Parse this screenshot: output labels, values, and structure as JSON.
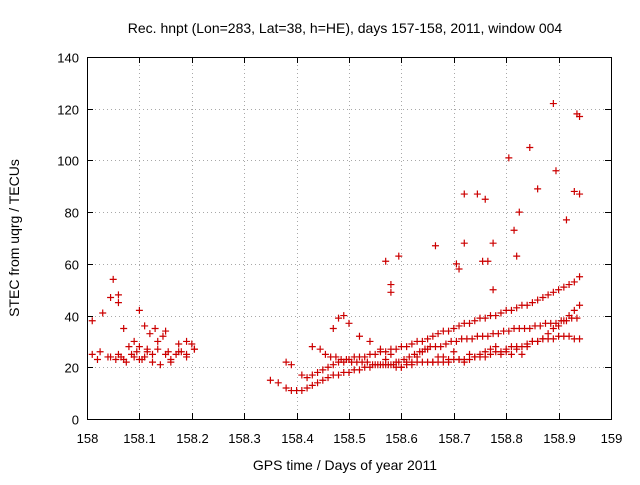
{
  "chart_data": {
    "type": "scatter",
    "title": "Rec. hnpt (Lon=283, Lat=38, h=HE), days 157-158, 2011, window 004",
    "xlabel": "GPS time / Days of year 2011",
    "ylabel": "STEC from uqrg / TECUs",
    "xlim": [
      158,
      159
    ],
    "ylim": [
      0,
      140
    ],
    "xticks": [
      "158",
      "158.1",
      "158.2",
      "158.3",
      "158.4",
      "158.5",
      "158.6",
      "158.7",
      "158.8",
      "158.9",
      "159"
    ],
    "xtick_values": [
      158,
      158.1,
      158.2,
      158.3,
      158.4,
      158.5,
      158.6,
      158.7,
      158.8,
      158.9,
      159
    ],
    "yticks": [
      "0",
      "20",
      "40",
      "60",
      "80",
      "100",
      "120",
      "140"
    ],
    "ytick_values": [
      0,
      20,
      40,
      60,
      80,
      100,
      120,
      140
    ],
    "grid": true,
    "marker": "plus",
    "color": "#cc0000",
    "series": [
      {
        "x": [
          158.01,
          158.01,
          158.02,
          158.03,
          158.04,
          158.045,
          158.05,
          158.055,
          158.06,
          158.06,
          158.065,
          158.07,
          158.075,
          158.08,
          158.085,
          158.09,
          158.095,
          158.1,
          158.1,
          158.105,
          158.11,
          158.115,
          158.12,
          158.125,
          158.13,
          158.135,
          158.14,
          158.145,
          158.15,
          158.155,
          158.16,
          158.17,
          158.175,
          158.18,
          158.19,
          158.19,
          158.2,
          158.205,
          158.025,
          158.045,
          158.06,
          158.07,
          158.09,
          158.1,
          158.11,
          158.115,
          158.125,
          158.135,
          158.15,
          158.16,
          158.175,
          158.19,
          158.205,
          158.35,
          158.365,
          158.38,
          158.39,
          158.4,
          158.41,
          158.42,
          158.43,
          158.44,
          158.45,
          158.46,
          158.47,
          158.48,
          158.49,
          158.5,
          158.51,
          158.52,
          158.53,
          158.54,
          158.55,
          158.56,
          158.57,
          158.58,
          158.59,
          158.6,
          158.61,
          158.62,
          158.63,
          158.64,
          158.65,
          158.66,
          158.67,
          158.68,
          158.69,
          158.7,
          158.71,
          158.72,
          158.73,
          158.74,
          158.75,
          158.76,
          158.77,
          158.78,
          158.79,
          158.8,
          158.81,
          158.82,
          158.83,
          158.84,
          158.85,
          158.86,
          158.87,
          158.88,
          158.89,
          158.9,
          158.91,
          158.92,
          158.93,
          158.94,
          158.38,
          158.39,
          158.41,
          158.42,
          158.43,
          158.44,
          158.45,
          158.46,
          158.47,
          158.48,
          158.49,
          158.5,
          158.51,
          158.52,
          158.53,
          158.54,
          158.55,
          158.56,
          158.57,
          158.58,
          158.59,
          158.6,
          158.61,
          158.62,
          158.63,
          158.64,
          158.65,
          158.66,
          158.67,
          158.68,
          158.69,
          158.7,
          158.71,
          158.72,
          158.73,
          158.74,
          158.75,
          158.76,
          158.77,
          158.78,
          158.79,
          158.8,
          158.81,
          158.82,
          158.83,
          158.84,
          158.85,
          158.86,
          158.87,
          158.88,
          158.89,
          158.9,
          158.91,
          158.92,
          158.93,
          158.94,
          158.43,
          158.445,
          158.455,
          158.465,
          158.475,
          158.485,
          158.495,
          158.505,
          158.515,
          158.525,
          158.535,
          158.545,
          158.555,
          158.565,
          158.575,
          158.585,
          158.595,
          158.605,
          158.615,
          158.625,
          158.635,
          158.645,
          158.655,
          158.665,
          158.675,
          158.685,
          158.695,
          158.705,
          158.715,
          158.725,
          158.735,
          158.745,
          158.755,
          158.765,
          158.775,
          158.785,
          158.795,
          158.805,
          158.815,
          158.825,
          158.835,
          158.845,
          158.855,
          158.865,
          158.875,
          158.885,
          158.895,
          158.905,
          158.915,
          158.925,
          158.935,
          158.47,
          158.48,
          158.49,
          158.5,
          158.52,
          158.54,
          158.56,
          158.57,
          158.58,
          158.59,
          158.6,
          158.61,
          158.62,
          158.63,
          158.64,
          158.65,
          158.66,
          158.67,
          158.68,
          158.69,
          158.7,
          158.71,
          158.72,
          158.73,
          158.74,
          158.75,
          158.76,
          158.77,
          158.78,
          158.79,
          158.8,
          158.81,
          158.82,
          158.83,
          158.84,
          158.85,
          158.86,
          158.87,
          158.88,
          158.89,
          158.9,
          158.91,
          158.92,
          158.93,
          158.94,
          158.57,
          158.58,
          158.58,
          158.595,
          158.665,
          158.705,
          158.71,
          158.72,
          158.72,
          158.745,
          158.755,
          158.76,
          158.765,
          158.775,
          158.775,
          158.805,
          158.815,
          158.82,
          158.825,
          158.845,
          158.86,
          158.89,
          158.895,
          158.915,
          158.93,
          158.935,
          158.94,
          158.94
        ],
        "y": [
          25,
          38,
          23,
          41,
          24,
          47,
          54,
          23,
          48,
          45,
          24,
          35,
          22,
          28,
          25,
          30,
          26,
          42,
          28,
          23,
          36,
          27,
          33,
          22,
          35,
          30,
          21,
          32,
          34,
          26,
          22,
          25,
          29,
          26,
          30,
          24,
          29,
          27,
          26,
          24,
          25,
          23,
          24,
          23,
          24,
          26,
          25,
          27,
          25,
          23,
          26,
          25,
          27,
          15,
          14,
          12,
          11,
          11,
          11,
          12,
          13,
          14,
          15,
          16,
          17,
          17,
          18,
          18,
          19,
          19,
          20,
          20,
          21,
          21,
          21,
          21,
          20,
          20,
          21,
          21,
          22,
          22,
          22,
          22,
          22,
          22,
          22,
          23,
          23,
          23,
          23,
          24,
          24,
          24,
          25,
          26,
          26,
          27,
          28,
          28,
          28,
          29,
          30,
          30,
          31,
          31,
          31,
          32,
          32,
          32,
          31,
          31,
          22,
          21,
          17,
          16,
          17,
          18,
          19,
          20,
          21,
          22,
          22,
          23,
          24,
          24,
          24,
          25,
          25,
          26,
          26,
          27,
          27,
          28,
          28,
          29,
          30,
          30,
          31,
          32,
          33,
          34,
          34,
          35,
          36,
          37,
          37,
          38,
          39,
          39,
          40,
          40,
          41,
          42,
          42,
          43,
          44,
          44,
          45,
          46,
          47,
          48,
          49,
          50,
          51,
          52,
          53,
          55,
          28,
          27,
          25,
          24,
          24,
          23,
          23,
          22,
          22,
          22,
          22,
          21,
          21,
          21,
          21,
          21,
          22,
          23,
          24,
          25,
          26,
          27,
          28,
          28,
          28,
          29,
          30,
          30,
          31,
          31,
          31,
          32,
          32,
          32,
          33,
          33,
          34,
          34,
          35,
          35,
          35,
          35,
          36,
          36,
          37,
          37,
          37,
          38,
          38,
          39,
          39,
          35,
          39,
          40,
          37,
          32,
          30,
          27,
          23,
          25,
          22,
          20,
          22,
          22,
          24,
          26,
          27,
          22,
          24,
          24,
          23,
          26,
          23,
          22,
          25,
          24,
          25,
          26,
          27,
          28,
          25,
          26,
          25,
          27,
          25,
          28,
          30,
          30,
          31,
          33,
          35,
          36,
          38,
          40,
          42,
          44,
          61,
          52,
          49,
          63,
          67,
          60,
          58,
          87,
          68,
          87,
          61,
          85,
          61,
          68,
          50,
          101,
          73,
          63,
          80,
          105,
          89,
          122,
          96,
          77,
          88,
          118,
          117,
          87
        ]
      }
    ]
  }
}
